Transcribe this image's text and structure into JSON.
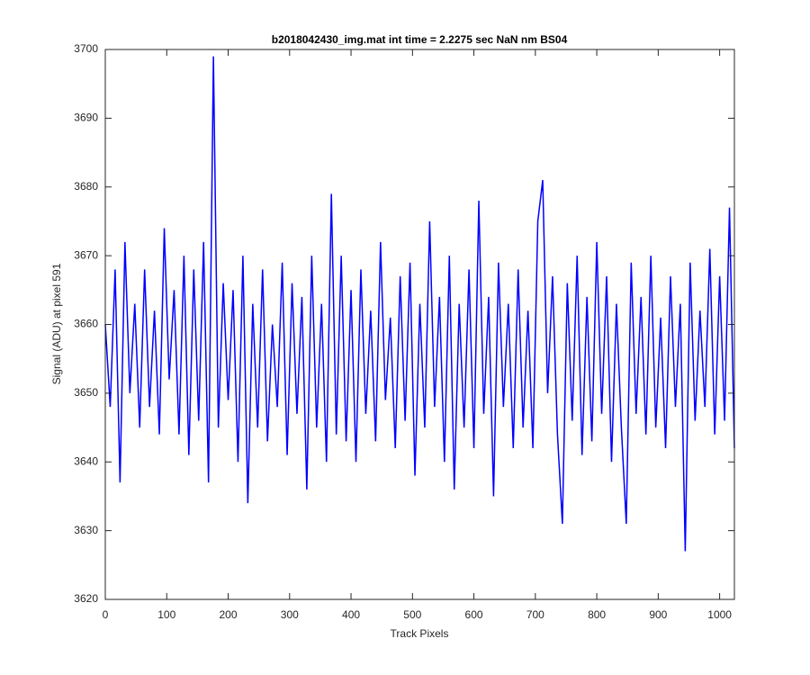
{
  "chart_data": {
    "type": "line",
    "title": "b2018042430_img.mat int time = 2.2275 sec  NaN nm BS04",
    "x_label": "Track Pixels",
    "y_label": "Signal (ADU) at pixel 591",
    "x": [
      0,
      8,
      16,
      24,
      32,
      40,
      48,
      56,
      64,
      72,
      80,
      88,
      96,
      104,
      112,
      120,
      128,
      136,
      144,
      152,
      160,
      168,
      176,
      184,
      192,
      200,
      208,
      216,
      224,
      232,
      240,
      248,
      256,
      264,
      272,
      280,
      288,
      296,
      304,
      312,
      320,
      328,
      336,
      344,
      352,
      360,
      368,
      376,
      384,
      392,
      400,
      408,
      416,
      424,
      432,
      440,
      448,
      456,
      464,
      472,
      480,
      488,
      496,
      504,
      512,
      520,
      528,
      536,
      544,
      552,
      560,
      568,
      576,
      584,
      592,
      600,
      608,
      616,
      624,
      632,
      640,
      648,
      656,
      664,
      672,
      680,
      688,
      696,
      704,
      712,
      720,
      728,
      736,
      744,
      752,
      760,
      768,
      776,
      784,
      792,
      800,
      808,
      816,
      824,
      832,
      840,
      848,
      856,
      864,
      872,
      880,
      888,
      896,
      904,
      912,
      920,
      928,
      936,
      944,
      952,
      960,
      968,
      976,
      984,
      992,
      1000,
      1008,
      1016,
      1024
    ],
    "series": [
      {
        "name": "Signal",
        "color": "#0000ff",
        "values": [
          3660,
          3648,
          3668,
          3637,
          3672,
          3650,
          3663,
          3645,
          3668,
          3648,
          3662,
          3644,
          3674,
          3652,
          3665,
          3644,
          3670,
          3641,
          3668,
          3646,
          3672,
          3637,
          3699,
          3645,
          3666,
          3649,
          3665,
          3640,
          3670,
          3634,
          3663,
          3645,
          3668,
          3643,
          3660,
          3648,
          3669,
          3641,
          3666,
          3647,
          3664,
          3636,
          3670,
          3645,
          3663,
          3640,
          3679,
          3644,
          3670,
          3643,
          3665,
          3640,
          3668,
          3647,
          3662,
          3643,
          3672,
          3649,
          3661,
          3642,
          3667,
          3646,
          3669,
          3638,
          3663,
          3645,
          3675,
          3648,
          3664,
          3640,
          3670,
          3636,
          3663,
          3645,
          3668,
          3642,
          3678,
          3647,
          3664,
          3635,
          3669,
          3648,
          3663,
          3642,
          3668,
          3645,
          3662,
          3642,
          3675,
          3681,
          3650,
          3667,
          3644,
          3631,
          3666,
          3646,
          3670,
          3641,
          3664,
          3643,
          3672,
          3647,
          3667,
          3640,
          3663,
          3645,
          3631,
          3669,
          3647,
          3664,
          3644,
          3670,
          3645,
          3661,
          3642,
          3667,
          3648,
          3663,
          3627,
          3669,
          3646,
          3662,
          3648,
          3671,
          3644,
          3667,
          3646,
          3677,
          3642
        ]
      }
    ],
    "xlim": [
      0,
      1024
    ],
    "ylim": [
      3620,
      3700
    ],
    "xticks": [
      0,
      100,
      200,
      300,
      400,
      500,
      600,
      700,
      800,
      900,
      1000
    ],
    "yticks": [
      3620,
      3630,
      3640,
      3650,
      3660,
      3670,
      3680,
      3690,
      3700
    ]
  }
}
